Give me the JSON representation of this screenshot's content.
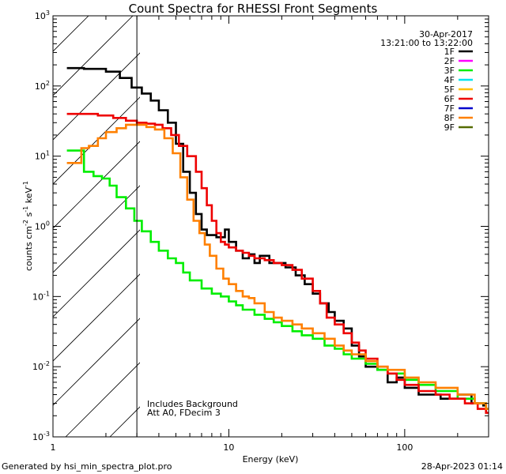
{
  "chart_data": {
    "type": "line",
    "title": "Count Spectra for RHESSI Front Segments",
    "xlabel": "Energy (keV)",
    "ylabel_parts": [
      "counts cm",
      "-2",
      " s",
      "-1",
      " keV",
      "-1"
    ],
    "x_scale": "log",
    "y_scale": "log",
    "xlim": [
      1,
      300
    ],
    "ylim": [
      0.001,
      1000
    ],
    "x_ticks": [
      {
        "value": 1,
        "label": "1"
      },
      {
        "value": 10,
        "label": "10"
      },
      {
        "value": 100,
        "label": "100"
      }
    ],
    "y_ticks": [
      {
        "value": 0.001,
        "base": "10",
        "exp": "-3"
      },
      {
        "value": 0.01,
        "base": "10",
        "exp": "-2"
      },
      {
        "value": 0.1,
        "base": "10",
        "exp": "-1"
      },
      {
        "value": 1,
        "base": "10",
        "exp": "0"
      },
      {
        "value": 10,
        "base": "10",
        "exp": "1"
      },
      {
        "value": 100,
        "base": "10",
        "exp": "2"
      },
      {
        "value": 1000,
        "base": "10",
        "exp": "3"
      }
    ],
    "threshold_energy": 3,
    "legend_header": [
      "30-Apr-2017",
      "13:21:00 to 13:22:00"
    ],
    "legend": [
      {
        "label": "1F",
        "color": "#000000"
      },
      {
        "label": "2F",
        "color": "#ff00ff"
      },
      {
        "label": "3F",
        "color": "#00ee00"
      },
      {
        "label": "4F",
        "color": "#00e5ee"
      },
      {
        "label": "5F",
        "color": "#ffc000"
      },
      {
        "label": "6F",
        "color": "#ee0000"
      },
      {
        "label": "7F",
        "color": "#0000cc"
      },
      {
        "label": "8F",
        "color": "#ff8000"
      },
      {
        "label": "9F",
        "color": "#556b00"
      }
    ],
    "annotations": [
      "Includes Background",
      "Att A0, FDecim 3"
    ],
    "series": [
      {
        "name": "1F",
        "color": "#000000",
        "points": [
          [
            1.2,
            180
          ],
          [
            1.5,
            175
          ],
          [
            2.0,
            160
          ],
          [
            2.4,
            130
          ],
          [
            2.8,
            95
          ],
          [
            3.2,
            78
          ],
          [
            3.6,
            62
          ],
          [
            4.0,
            45
          ],
          [
            4.5,
            30
          ],
          [
            5.0,
            15
          ],
          [
            5.5,
            6
          ],
          [
            6.0,
            3.0
          ],
          [
            6.5,
            1.5
          ],
          [
            7.0,
            0.9
          ],
          [
            7.5,
            0.75
          ],
          [
            8.5,
            0.7
          ],
          [
            9.5,
            0.9
          ],
          [
            10.0,
            0.6
          ],
          [
            11.0,
            0.45
          ],
          [
            12.0,
            0.35
          ],
          [
            13,
            0.4
          ],
          [
            14,
            0.3
          ],
          [
            15,
            0.38
          ],
          [
            17,
            0.3
          ],
          [
            19,
            0.3
          ],
          [
            21,
            0.26
          ],
          [
            24,
            0.2
          ],
          [
            27,
            0.15
          ],
          [
            30,
            0.11
          ],
          [
            33,
            0.08
          ],
          [
            37,
            0.06
          ],
          [
            40,
            0.045
          ],
          [
            45,
            0.035
          ],
          [
            50,
            0.02
          ],
          [
            55,
            0.014
          ],
          [
            60,
            0.01
          ],
          [
            70,
            0.009
          ],
          [
            80,
            0.006
          ],
          [
            90,
            0.007
          ],
          [
            100,
            0.005
          ],
          [
            120,
            0.004
          ],
          [
            140,
            0.004
          ],
          [
            160,
            0.0035
          ],
          [
            200,
            0.004
          ],
          [
            240,
            0.003
          ],
          [
            280,
            0.0028
          ]
        ]
      },
      {
        "name": "3F",
        "color": "#00ee00",
        "points": [
          [
            1.2,
            12
          ],
          [
            1.35,
            12
          ],
          [
            1.5,
            6
          ],
          [
            1.7,
            5.2
          ],
          [
            1.9,
            4.8
          ],
          [
            2.1,
            3.8
          ],
          [
            2.3,
            2.6
          ],
          [
            2.6,
            1.8
          ],
          [
            2.9,
            1.2
          ],
          [
            3.2,
            0.85
          ],
          [
            3.6,
            0.6
          ],
          [
            4.0,
            0.45
          ],
          [
            4.5,
            0.35
          ],
          [
            5.0,
            0.3
          ],
          [
            5.5,
            0.22
          ],
          [
            6.0,
            0.17
          ],
          [
            7.0,
            0.13
          ],
          [
            8.0,
            0.11
          ],
          [
            9.0,
            0.1
          ],
          [
            10,
            0.085
          ],
          [
            11,
            0.075
          ],
          [
            12,
            0.065
          ],
          [
            14,
            0.055
          ],
          [
            16,
            0.048
          ],
          [
            18,
            0.043
          ],
          [
            20,
            0.038
          ],
          [
            23,
            0.032
          ],
          [
            26,
            0.028
          ],
          [
            30,
            0.025
          ],
          [
            35,
            0.02
          ],
          [
            40,
            0.018
          ],
          [
            45,
            0.015
          ],
          [
            50,
            0.013
          ],
          [
            60,
            0.011
          ],
          [
            70,
            0.009
          ],
          [
            80,
            0.008
          ],
          [
            100,
            0.0065
          ],
          [
            120,
            0.0055
          ],
          [
            150,
            0.0045
          ],
          [
            200,
            0.0035
          ],
          [
            250,
            0.003
          ],
          [
            290,
            0.0025
          ]
        ]
      },
      {
        "name": "6F",
        "color": "#ee0000",
        "points": [
          [
            1.2,
            40
          ],
          [
            1.5,
            40
          ],
          [
            1.8,
            38
          ],
          [
            2.2,
            35
          ],
          [
            2.6,
            32
          ],
          [
            3.0,
            30
          ],
          [
            3.4,
            29
          ],
          [
            3.8,
            28
          ],
          [
            4.2,
            25
          ],
          [
            4.7,
            20
          ],
          [
            5.2,
            14
          ],
          [
            5.8,
            10
          ],
          [
            6.5,
            6
          ],
          [
            7.0,
            3.5
          ],
          [
            7.5,
            2.0
          ],
          [
            8.0,
            1.2
          ],
          [
            8.5,
            0.8
          ],
          [
            9.0,
            0.6
          ],
          [
            9.5,
            0.55
          ],
          [
            10,
            0.5
          ],
          [
            11,
            0.45
          ],
          [
            12,
            0.42
          ],
          [
            13,
            0.38
          ],
          [
            14,
            0.35
          ],
          [
            16,
            0.33
          ],
          [
            18,
            0.3
          ],
          [
            20,
            0.28
          ],
          [
            23,
            0.24
          ],
          [
            26,
            0.18
          ],
          [
            30,
            0.12
          ],
          [
            33,
            0.08
          ],
          [
            36,
            0.05
          ],
          [
            40,
            0.04
          ],
          [
            45,
            0.03
          ],
          [
            50,
            0.022
          ],
          [
            55,
            0.017
          ],
          [
            60,
            0.013
          ],
          [
            70,
            0.01
          ],
          [
            80,
            0.008
          ],
          [
            90,
            0.0065
          ],
          [
            100,
            0.0055
          ],
          [
            120,
            0.0045
          ],
          [
            150,
            0.004
          ],
          [
            180,
            0.0035
          ],
          [
            220,
            0.003
          ],
          [
            260,
            0.0025
          ],
          [
            290,
            0.0022
          ]
        ]
      },
      {
        "name": "8F",
        "color": "#ff8000",
        "points": [
          [
            1.2,
            8
          ],
          [
            1.35,
            8
          ],
          [
            1.45,
            13
          ],
          [
            1.6,
            14
          ],
          [
            1.8,
            18
          ],
          [
            2.0,
            22
          ],
          [
            2.3,
            25
          ],
          [
            2.6,
            28
          ],
          [
            3.0,
            28
          ],
          [
            3.4,
            26
          ],
          [
            3.8,
            24
          ],
          [
            4.3,
            18
          ],
          [
            4.8,
            11
          ],
          [
            5.3,
            5
          ],
          [
            5.8,
            2.4
          ],
          [
            6.3,
            1.2
          ],
          [
            6.8,
            0.8
          ],
          [
            7.3,
            0.55
          ],
          [
            7.8,
            0.38
          ],
          [
            8.5,
            0.25
          ],
          [
            9.3,
            0.18
          ],
          [
            10,
            0.15
          ],
          [
            11,
            0.12
          ],
          [
            12,
            0.1
          ],
          [
            13,
            0.095
          ],
          [
            14,
            0.08
          ],
          [
            16,
            0.06
          ],
          [
            18,
            0.05
          ],
          [
            20,
            0.045
          ],
          [
            23,
            0.04
          ],
          [
            26,
            0.035
          ],
          [
            30,
            0.03
          ],
          [
            35,
            0.025
          ],
          [
            40,
            0.02
          ],
          [
            45,
            0.017
          ],
          [
            50,
            0.015
          ],
          [
            60,
            0.012
          ],
          [
            70,
            0.01
          ],
          [
            80,
            0.009
          ],
          [
            100,
            0.007
          ],
          [
            120,
            0.006
          ],
          [
            150,
            0.005
          ],
          [
            200,
            0.004
          ],
          [
            250,
            0.003
          ],
          [
            290,
            0.0025
          ]
        ]
      }
    ]
  },
  "footer": {
    "left": "Generated by hsi_min_spectra_plot.pro",
    "right": "28-Apr-2023 01:14"
  }
}
